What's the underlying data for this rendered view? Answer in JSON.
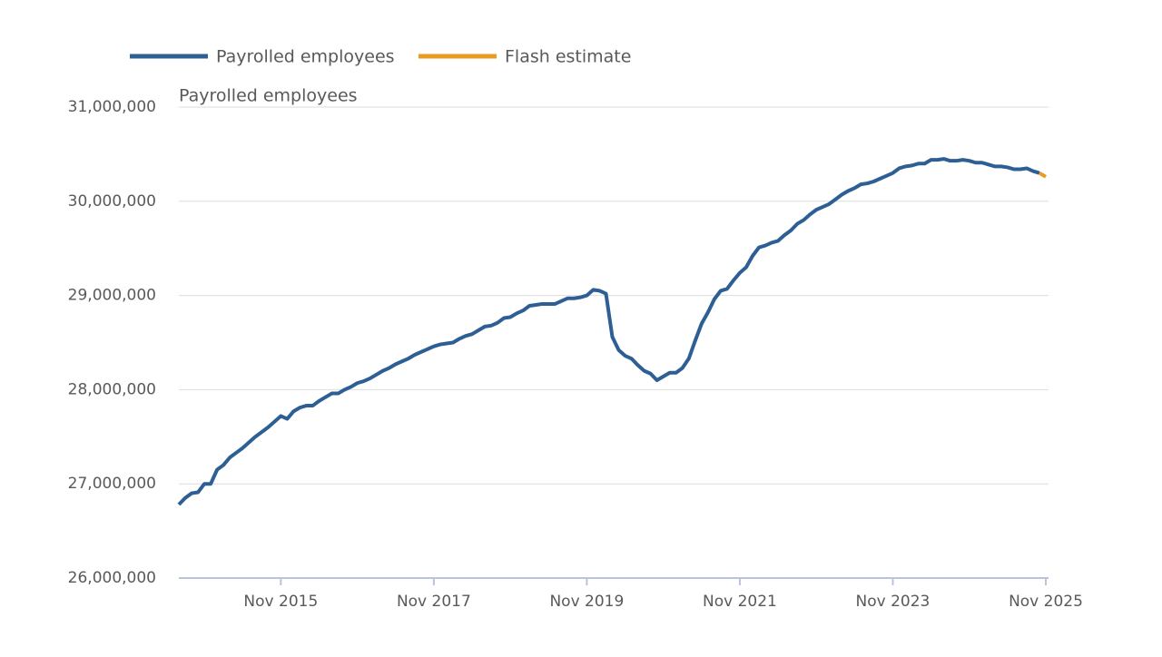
{
  "chart_data": {
    "type": "line",
    "y_axis_label": "Payrolled employees",
    "x": [
      "Jul 2014",
      "Aug 2014",
      "Sep 2014",
      "Oct 2014",
      "Nov 2014",
      "Dec 2014",
      "Jan 2015",
      "Feb 2015",
      "Mar 2015",
      "Apr 2015",
      "May 2015",
      "Jun 2015",
      "Jul 2015",
      "Aug 2015",
      "Sep 2015",
      "Oct 2015",
      "Nov 2015",
      "Dec 2015",
      "Jan 2016",
      "Feb 2016",
      "Mar 2016",
      "Apr 2016",
      "May 2016",
      "Jun 2016",
      "Jul 2016",
      "Aug 2016",
      "Sep 2016",
      "Oct 2016",
      "Nov 2016",
      "Dec 2016",
      "Jan 2017",
      "Feb 2017",
      "Mar 2017",
      "Apr 2017",
      "May 2017",
      "Jun 2017",
      "Jul 2017",
      "Aug 2017",
      "Sep 2017",
      "Oct 2017",
      "Nov 2017",
      "Dec 2017",
      "Jan 2018",
      "Feb 2018",
      "Mar 2018",
      "Apr 2018",
      "May 2018",
      "Jun 2018",
      "Jul 2018",
      "Aug 2018",
      "Sep 2018",
      "Oct 2018",
      "Nov 2018",
      "Dec 2018",
      "Jan 2019",
      "Feb 2019",
      "Mar 2019",
      "Apr 2019",
      "May 2019",
      "Jun 2019",
      "Jul 2019",
      "Aug 2019",
      "Sep 2019",
      "Oct 2019",
      "Nov 2019",
      "Dec 2019",
      "Jan 2020",
      "Feb 2020",
      "Mar 2020",
      "Apr 2020",
      "May 2020",
      "Jun 2020",
      "Jul 2020",
      "Aug 2020",
      "Sep 2020",
      "Oct 2020",
      "Nov 2020",
      "Dec 2020",
      "Jan 2021",
      "Feb 2021",
      "Mar 2021",
      "Apr 2021",
      "May 2021",
      "Jun 2021",
      "Jul 2021",
      "Aug 2021",
      "Sep 2021",
      "Oct 2021",
      "Nov 2021",
      "Dec 2021",
      "Jan 2022",
      "Feb 2022",
      "Mar 2022",
      "Apr 2022",
      "May 2022",
      "Jun 2022",
      "Jul 2022",
      "Aug 2022",
      "Sep 2022",
      "Oct 2022",
      "Nov 2022",
      "Dec 2022",
      "Jan 2023",
      "Feb 2023",
      "Mar 2023",
      "Apr 2023",
      "May 2023",
      "Jun 2023",
      "Jul 2023",
      "Aug 2023",
      "Sep 2023",
      "Oct 2023",
      "Nov 2023",
      "Dec 2023",
      "Jan 2024",
      "Feb 2024",
      "Mar 2024",
      "Apr 2024",
      "May 2024",
      "Jun 2024",
      "Jul 2024",
      "Aug 2024",
      "Sep 2024",
      "Oct 2024",
      "Nov 2024",
      "Dec 2024",
      "Jan 2025",
      "Feb 2025",
      "Mar 2025",
      "Apr 2025",
      "May 2025",
      "Jun 2025",
      "Jul 2025",
      "Aug 2025",
      "Sep 2025",
      "Oct 2025",
      "Nov 2025"
    ],
    "series": [
      {
        "name": "Payrolled employees",
        "color": "#2e5f94",
        "values": [
          26780000,
          26850000,
          26900000,
          26910000,
          27000000,
          27000000,
          27150000,
          27200000,
          27280000,
          27330000,
          27380000,
          27440000,
          27500000,
          27550000,
          27600000,
          27660000,
          27720000,
          27690000,
          27770000,
          27810000,
          27830000,
          27830000,
          27880000,
          27920000,
          27960000,
          27960000,
          28000000,
          28030000,
          28070000,
          28090000,
          28120000,
          28160000,
          28200000,
          28230000,
          28270000,
          28300000,
          28330000,
          28370000,
          28400000,
          28430000,
          28460000,
          28480000,
          28490000,
          28500000,
          28540000,
          28570000,
          28590000,
          28630000,
          28670000,
          28680000,
          28710000,
          28760000,
          28770000,
          28810000,
          28840000,
          28890000,
          28900000,
          28910000,
          28910000,
          28910000,
          28940000,
          28970000,
          28970000,
          28980000,
          29000000,
          29060000,
          29050000,
          29020000,
          28560000,
          28420000,
          28360000,
          28330000,
          28260000,
          28200000,
          28170000,
          28100000,
          28140000,
          28180000,
          28180000,
          28230000,
          28330000,
          28520000,
          28700000,
          28820000,
          28960000,
          29050000,
          29070000,
          29160000,
          29240000,
          29300000,
          29420000,
          29510000,
          29530000,
          29560000,
          29580000,
          29640000,
          29690000,
          29760000,
          29800000,
          29860000,
          29910000,
          29940000,
          29970000,
          30020000,
          30070000,
          30110000,
          30140000,
          30180000,
          30190000,
          30210000,
          30240000,
          30270000,
          30300000,
          30350000,
          30370000,
          30380000,
          30400000,
          30400000,
          30440000,
          30440000,
          30450000,
          30430000,
          30430000,
          30440000,
          30430000,
          30410000,
          30410000,
          30390000,
          30370000,
          30370000,
          30360000,
          30340000,
          30340000,
          30350000,
          30320000,
          30300000,
          null
        ]
      },
      {
        "name": "Flash estimate",
        "color": "#e89b21",
        "values": [
          null,
          null,
          null,
          null,
          null,
          null,
          null,
          null,
          null,
          null,
          null,
          null,
          null,
          null,
          null,
          null,
          null,
          null,
          null,
          null,
          null,
          null,
          null,
          null,
          null,
          null,
          null,
          null,
          null,
          null,
          null,
          null,
          null,
          null,
          null,
          null,
          null,
          null,
          null,
          null,
          null,
          null,
          null,
          null,
          null,
          null,
          null,
          null,
          null,
          null,
          null,
          null,
          null,
          null,
          null,
          null,
          null,
          null,
          null,
          null,
          null,
          null,
          null,
          null,
          null,
          null,
          null,
          null,
          null,
          null,
          null,
          null,
          null,
          null,
          null,
          null,
          null,
          null,
          null,
          null,
          null,
          null,
          null,
          null,
          null,
          null,
          null,
          null,
          null,
          null,
          null,
          null,
          null,
          null,
          null,
          null,
          null,
          null,
          null,
          null,
          null,
          null,
          null,
          null,
          null,
          null,
          null,
          null,
          null,
          null,
          null,
          null,
          null,
          null,
          null,
          null,
          null,
          null,
          null,
          null,
          null,
          null,
          null,
          null,
          null,
          null,
          null,
          null,
          null,
          null,
          null,
          null,
          null,
          null,
          null,
          30300000,
          30260000
        ]
      }
    ],
    "xticks": [
      "Nov 2015",
      "Nov 2017",
      "Nov 2019",
      "Nov 2021",
      "Nov 2023",
      "Nov 2025"
    ],
    "ylim": [
      26000000,
      31000000
    ],
    "yticks": [
      {
        "value": 26000000,
        "label": "26,000,000"
      },
      {
        "value": 27000000,
        "label": "27,000,000"
      },
      {
        "value": 28000000,
        "label": "28,000,000"
      },
      {
        "value": 29000000,
        "label": "29,000,000"
      },
      {
        "value": 30000000,
        "label": "30,000,000"
      },
      {
        "value": 31000000,
        "label": "31,000,000"
      }
    ],
    "grid": true,
    "legend": "top"
  }
}
